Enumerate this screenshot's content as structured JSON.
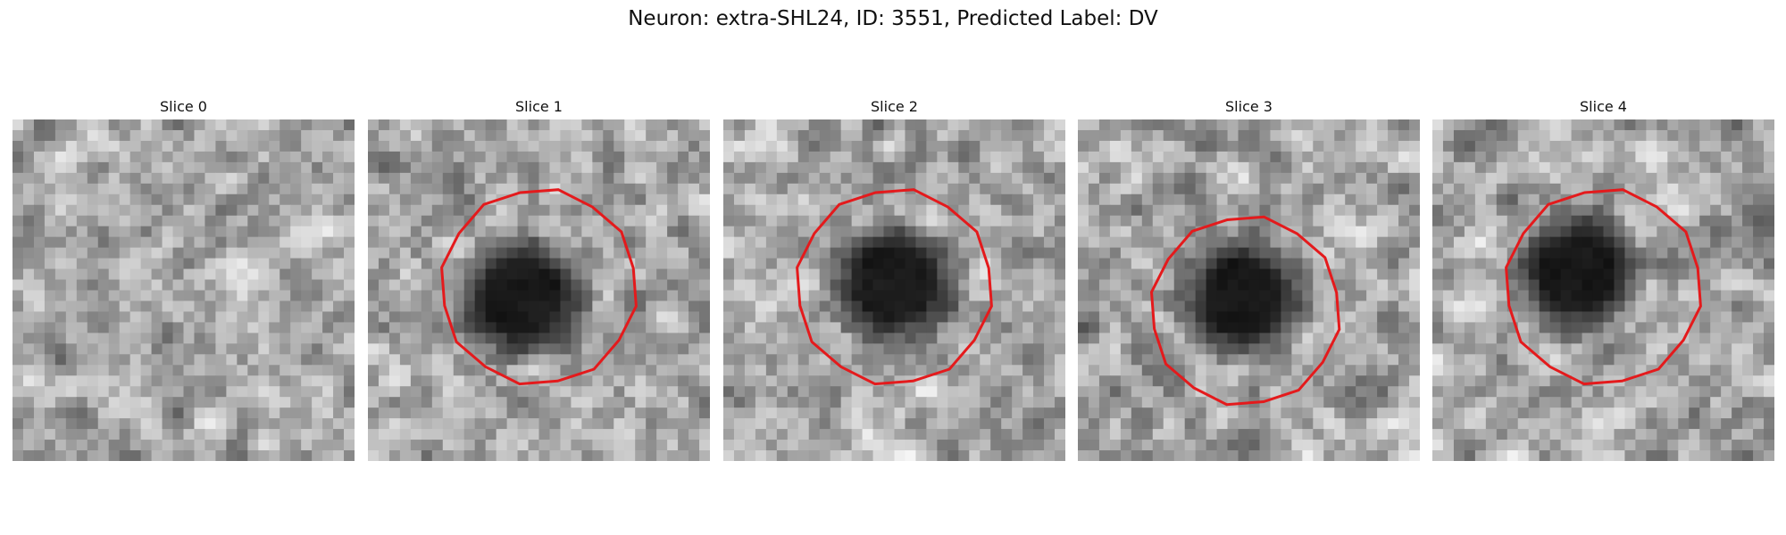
{
  "title": "Neuron: extra-SHL24, ID: 3551, Predicted Label: DV",
  "panels": [
    {
      "label": "Slice 0",
      "outline": false,
      "blob_dx": 0,
      "blob_dy": 0,
      "seed": 11
    },
    {
      "label": "Slice 1",
      "outline": true,
      "blob_dx": -0.05,
      "blob_dy": 0.05,
      "seed": 23
    },
    {
      "label": "Slice 2",
      "outline": true,
      "blob_dx": 0.02,
      "blob_dy": 0.0,
      "seed": 37
    },
    {
      "label": "Slice 3",
      "outline": true,
      "blob_dx": -0.05,
      "blob_dy": 0.0,
      "seed": 51
    },
    {
      "label": "Slice 4",
      "outline": true,
      "blob_dx": -0.1,
      "blob_dy": -0.1,
      "seed": 67
    }
  ],
  "colors": {
    "outline": "#e41a1c",
    "background": "#ffffff"
  }
}
